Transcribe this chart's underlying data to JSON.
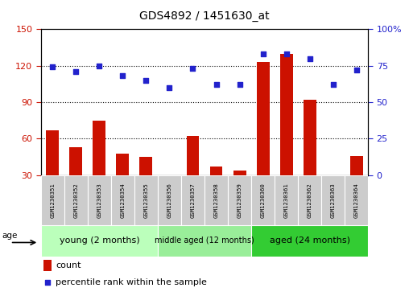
{
  "title": "GDS4892 / 1451630_at",
  "samples": [
    "GSM1230351",
    "GSM1230352",
    "GSM1230353",
    "GSM1230354",
    "GSM1230355",
    "GSM1230356",
    "GSM1230357",
    "GSM1230358",
    "GSM1230359",
    "GSM1230360",
    "GSM1230361",
    "GSM1230362",
    "GSM1230363",
    "GSM1230364"
  ],
  "counts": [
    67,
    53,
    75,
    48,
    45,
    28,
    62,
    37,
    34,
    123,
    130,
    92,
    30,
    46
  ],
  "percentiles": [
    74,
    71,
    75,
    68,
    65,
    60,
    73,
    62,
    62,
    83,
    83,
    80,
    62,
    72
  ],
  "groups": [
    {
      "label": "young (2 months)",
      "start": 0,
      "end": 5,
      "color": "#bbffbb"
    },
    {
      "label": "middle aged (12 months)",
      "start": 5,
      "end": 9,
      "color": "#99ee99"
    },
    {
      "label": "aged (24 months)",
      "start": 9,
      "end": 14,
      "color": "#33cc33"
    }
  ],
  "ylim_left": [
    30,
    150
  ],
  "ylim_right": [
    0,
    100
  ],
  "yticks_left": [
    30,
    60,
    90,
    120,
    150
  ],
  "yticks_right": [
    0,
    25,
    50,
    75,
    100
  ],
  "ytick_right_labels": [
    "0",
    "25",
    "50",
    "75",
    "100%"
  ],
  "bar_color": "#cc1100",
  "scatter_color": "#2222cc",
  "dot_color": "#000000",
  "bg_color": "#ffffff",
  "plot_bg": "#ffffff",
  "tick_label_color_left": "#cc1100",
  "tick_label_color_right": "#2222cc",
  "legend_count_label": "count",
  "legend_pct_label": "percentile rank within the sample",
  "age_label": "age"
}
